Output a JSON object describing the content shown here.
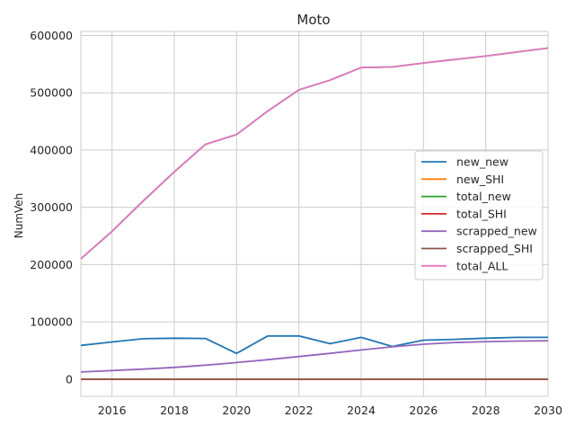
{
  "chart_data": {
    "type": "line",
    "title": "Moto",
    "xlabel": "",
    "ylabel": "NumVeh",
    "xlim": [
      2015,
      2030
    ],
    "ylim": [
      -30000,
      607000
    ],
    "grid": true,
    "legend_position": "center-right",
    "x": [
      2015,
      2016,
      2017,
      2018,
      2019,
      2020,
      2021,
      2022,
      2023,
      2024,
      2025,
      2026,
      2027,
      2028,
      2029,
      2030
    ],
    "x_ticks": [
      2016,
      2018,
      2020,
      2022,
      2024,
      2026,
      2028,
      2030
    ],
    "y_ticks": [
      0,
      100000,
      200000,
      300000,
      400000,
      500000,
      600000
    ],
    "series": [
      {
        "name": "new_new",
        "color": "#1f77b4",
        "values": [
          59000,
          65000,
          70500,
          71500,
          71000,
          45000,
          75500,
          75500,
          62000,
          73000,
          57000,
          68000,
          69500,
          71500,
          73000,
          73000
        ]
      },
      {
        "name": "new_SHI",
        "color": "#ff7f0e",
        "values": [
          0,
          0,
          0,
          0,
          0,
          0,
          0,
          0,
          0,
          0,
          0,
          0,
          0,
          0,
          0,
          0
        ]
      },
      {
        "name": "total_new",
        "color": "#2ca02c",
        "values": [
          210000,
          258000,
          311000,
          362000,
          410000,
          427000,
          468000,
          505000,
          522000,
          544000,
          545000,
          552000,
          558000,
          564000,
          571000,
          578000
        ]
      },
      {
        "name": "total_SHI",
        "color": "#d62728",
        "values": [
          0,
          0,
          0,
          0,
          0,
          0,
          0,
          0,
          0,
          0,
          0,
          0,
          0,
          0,
          0,
          0
        ]
      },
      {
        "name": "scrapped_new",
        "color": "#9467bd",
        "values": [
          12500,
          15000,
          17500,
          20500,
          24500,
          29000,
          34000,
          39500,
          45000,
          51000,
          56500,
          61000,
          64000,
          65500,
          66500,
          67000
        ]
      },
      {
        "name": "scrapped_SHI",
        "color": "#8c564b",
        "values": [
          0,
          0,
          0,
          0,
          0,
          0,
          0,
          0,
          0,
          0,
          0,
          0,
          0,
          0,
          0,
          0
        ]
      },
      {
        "name": "total_ALL",
        "color": "#e377c2",
        "values": [
          210000,
          258000,
          311000,
          362000,
          410000,
          427000,
          468000,
          505000,
          522000,
          544000,
          545000,
          552000,
          558000,
          564000,
          571000,
          578000
        ]
      }
    ]
  }
}
